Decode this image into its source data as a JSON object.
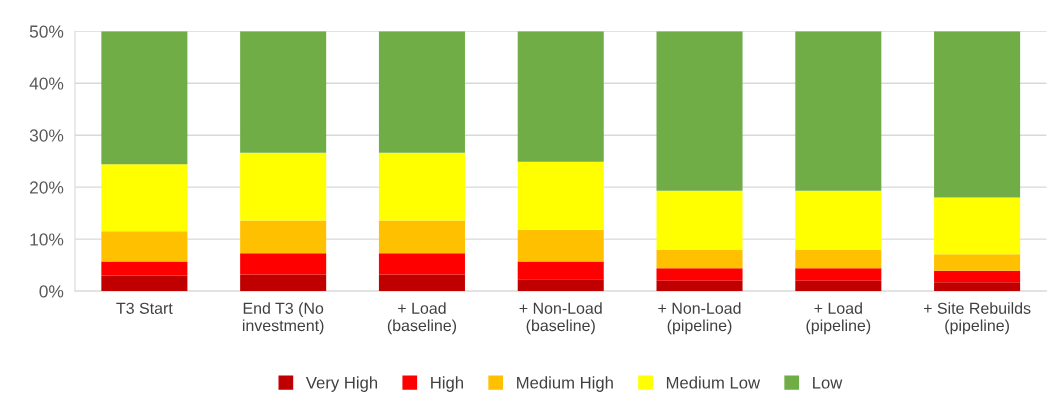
{
  "chart_data": {
    "type": "bar",
    "stacked": true,
    "categories": [
      "T3 Start",
      "End T3 (No\ninvestment)",
      "+ Load\n(baseline)",
      "+ Non-Load\n(baseline)",
      "+ Non-Load\n(pipeline)",
      "+ Load\n(pipeline)",
      "+ Site Rebuilds\n(pipeline)"
    ],
    "series": [
      {
        "name": "Very High",
        "color": "#c00000",
        "values": [
          3.0,
          3.2,
          3.2,
          2.3,
          2.0,
          2.0,
          1.7
        ]
      },
      {
        "name": "High",
        "color": "#ff0000",
        "values": [
          2.7,
          4.1,
          4.1,
          3.4,
          2.4,
          2.4,
          2.2
        ]
      },
      {
        "name": "Medium High",
        "color": "#ffc000",
        "values": [
          5.8,
          6.3,
          6.3,
          6.1,
          3.5,
          3.5,
          3.2
        ]
      },
      {
        "name": "Medium Low",
        "color": "#ffff00",
        "values": [
          12.9,
          13.0,
          13.0,
          13.1,
          11.4,
          11.4,
          10.9
        ]
      },
      {
        "name": "Low",
        "color": "#70ad47",
        "values": [
          25.6,
          23.4,
          23.4,
          25.1,
          30.7,
          30.7,
          32.0
        ]
      }
    ],
    "ylim": [
      0,
      50
    ],
    "yticks": [
      {
        "value": 0,
        "label": "0%"
      },
      {
        "value": 10,
        "label": "10%"
      },
      {
        "value": 20,
        "label": "20%"
      },
      {
        "value": 30,
        "label": "30%"
      },
      {
        "value": 40,
        "label": "40%"
      },
      {
        "value": 50,
        "label": "50%"
      }
    ],
    "grid": "y",
    "legend": "bottom"
  }
}
